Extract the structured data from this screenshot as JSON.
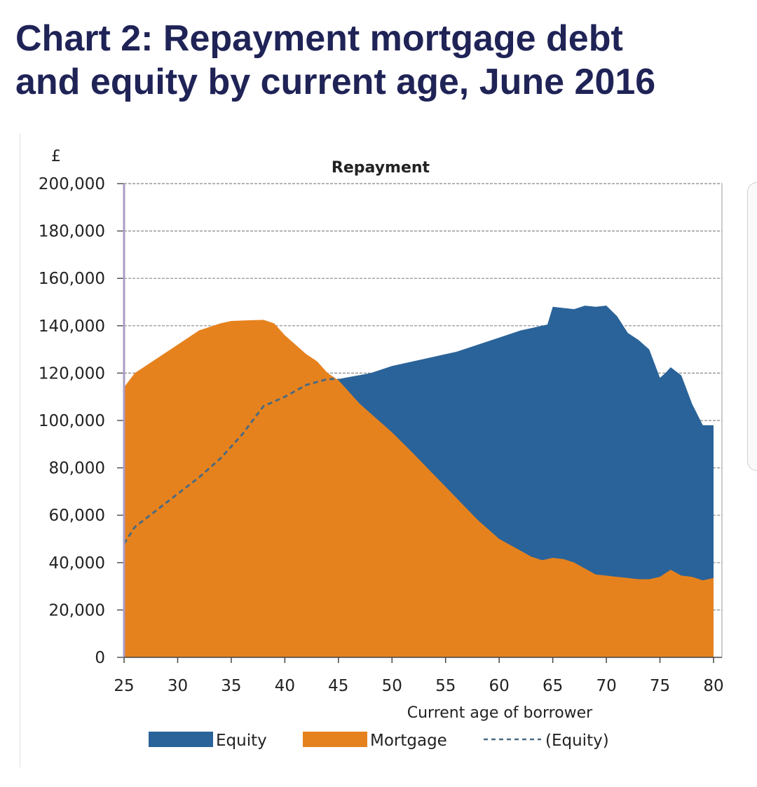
{
  "headline": {
    "line1": "Chart 2: Repayment mortgage debt",
    "line2": "and equity by current age, June 2016"
  },
  "chart_data": {
    "type": "area",
    "title": "Repayment",
    "ylabel": "£",
    "xlabel": "Current age of borrower",
    "xlim": [
      25,
      80
    ],
    "ylim": [
      0,
      200000
    ],
    "grid": true,
    "legend_position": "bottom",
    "x_ticks": [
      "25",
      "30",
      "35",
      "40",
      "45",
      "50",
      "55",
      "60",
      "65",
      "70",
      "75",
      "80"
    ],
    "y_ticks": [
      "0",
      "20,000",
      "40,000",
      "60,000",
      "80,000",
      "100,000",
      "120,000",
      "140,000",
      "160,000",
      "180,000",
      "200,000"
    ],
    "colors": {
      "equity": "#2a6399",
      "mortgage": "#e6821e",
      "equity_line": "#4d6a80",
      "grid": "#888888"
    },
    "legend": [
      {
        "label": "Equity",
        "kind": "swatch",
        "color": "#2a6399"
      },
      {
        "label": "Mortgage",
        "kind": "swatch",
        "color": "#e6821e"
      },
      {
        "label": "(Equity)",
        "kind": "dashed-line",
        "color": "#4d6a80"
      }
    ],
    "series": [
      {
        "name": "Equity",
        "x": [
          44,
          45,
          48,
          50,
          53,
          56,
          58,
          60,
          62,
          64,
          64.5,
          65,
          66,
          67,
          68,
          69,
          70,
          71,
          72,
          73,
          74,
          75,
          75.5,
          76,
          77,
          78,
          79,
          80
        ],
        "values": [
          117000,
          117500,
          120000,
          123000,
          126000,
          129000,
          132000,
          135000,
          138000,
          140000,
          140500,
          148000,
          147500,
          147000,
          148500,
          148000,
          148500,
          144000,
          137000,
          134000,
          130000,
          118000,
          120000,
          122500,
          119000,
          107000,
          98000,
          98000
        ]
      },
      {
        "name": "Mortgage",
        "x": [
          25,
          26,
          28,
          30,
          32,
          34,
          35,
          36,
          38,
          39,
          40,
          42,
          43,
          44,
          45,
          47,
          50,
          52,
          55,
          58,
          60,
          62,
          63,
          64,
          65,
          66,
          67,
          69,
          70,
          71,
          72,
          73,
          74,
          75,
          76,
          77,
          78,
          79,
          80
        ],
        "values": [
          114000,
          120000,
          126000,
          132000,
          138000,
          141000,
          142000,
          142200,
          142500,
          141000,
          136000,
          128000,
          125000,
          120000,
          117000,
          107000,
          95000,
          86000,
          72000,
          58000,
          50000,
          45000,
          42500,
          41000,
          42000,
          41500,
          40000,
          35000,
          34500,
          34000,
          33500,
          33000,
          33000,
          34000,
          37000,
          34500,
          34000,
          32500,
          33500
        ]
      },
      {
        "name": "(Equity)",
        "x": [
          25,
          26,
          28,
          30,
          32,
          34,
          36,
          38,
          40,
          42,
          44,
          45
        ],
        "values": [
          48000,
          55000,
          62000,
          69000,
          76000,
          84000,
          94000,
          106000,
          110000,
          115000,
          117500,
          117500
        ]
      }
    ]
  }
}
